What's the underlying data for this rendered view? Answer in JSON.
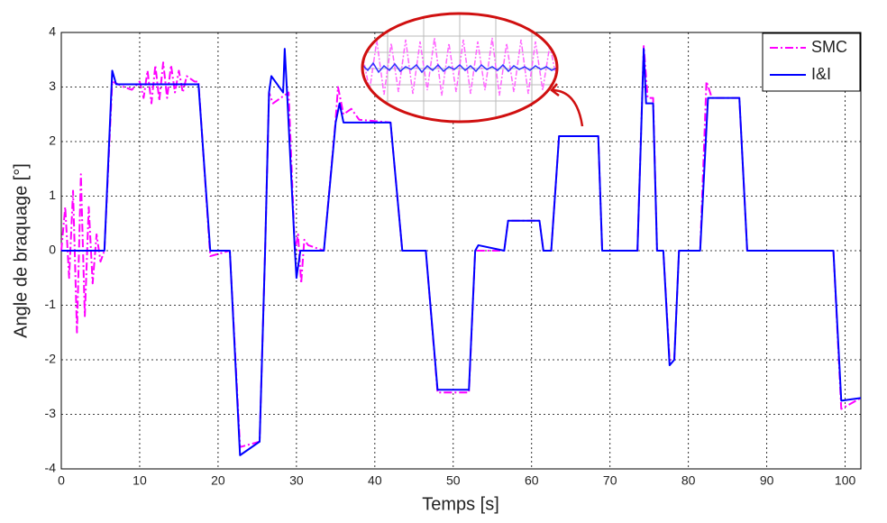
{
  "chart_data": {
    "type": "line",
    "xlabel": "Temps [s]",
    "ylabel": "Angle de braquage [°]",
    "xlim": [
      0,
      102
    ],
    "ylim": [
      -4,
      4
    ],
    "xticks": [
      0,
      10,
      20,
      30,
      40,
      50,
      60,
      70,
      80,
      90,
      100
    ],
    "yticks": [
      -4,
      -3,
      -2,
      -1,
      0,
      1,
      2,
      3,
      4
    ],
    "grid": true,
    "legend": "upper right",
    "series": [
      {
        "name": "SMC",
        "color": "#ff00ff",
        "dash": "dashdot",
        "x": [
          0,
          0.5,
          1,
          1.5,
          2,
          2.5,
          3,
          3.5,
          4,
          4.5,
          5,
          5.5,
          6.5,
          8,
          9,
          10,
          10.5,
          11,
          11.5,
          12,
          12.5,
          13,
          13.5,
          14,
          14.5,
          15,
          15.5,
          16,
          17,
          17.5,
          19,
          21.5,
          22.8,
          25.3,
          26,
          26.5,
          27,
          28,
          29,
          29.8,
          30.2,
          30.6,
          31,
          31.5,
          33.5,
          35,
          35.3,
          36,
          37,
          38,
          42,
          43.5,
          46.5,
          48,
          52,
          52.8,
          56.5,
          57,
          61,
          61.5,
          62.5,
          63.5,
          68.5,
          69,
          73.5,
          74.3,
          74.8,
          75.5,
          76,
          76.8,
          77.6,
          78.2,
          78.8,
          81.5,
          82.3,
          83,
          86.5,
          87.5,
          98.5,
          99.5,
          102
        ],
        "values": [
          0,
          0.8,
          -0.5,
          1.1,
          -1.5,
          1.4,
          -1.2,
          0.8,
          -0.6,
          0.3,
          -0.2,
          0,
          3.1,
          3.0,
          2.95,
          3.1,
          2.8,
          3.3,
          2.7,
          3.4,
          2.75,
          3.45,
          2.8,
          3.4,
          2.9,
          3.3,
          2.9,
          3.2,
          3.1,
          3.1,
          -0.1,
          0,
          -3.6,
          -3.5,
          0,
          2.9,
          2.7,
          2.8,
          2.9,
          0,
          0.3,
          -0.6,
          0.2,
          0.1,
          0,
          2.4,
          3.0,
          2.5,
          2.6,
          2.4,
          2.35,
          0,
          0,
          -2.6,
          -2.6,
          0,
          0,
          0.55,
          0.55,
          0,
          0,
          2.1,
          2.1,
          0,
          0,
          3.75,
          2.8,
          2.8,
          0,
          0,
          -2.0,
          -2,
          0,
          0,
          3.1,
          2.8,
          2.8,
          0,
          0,
          -2.9,
          -2.7
        ]
      },
      {
        "name": "I&I",
        "color": "#0000ff",
        "dash": "solid",
        "x": [
          0,
          5.5,
          6.5,
          7,
          17.5,
          19,
          21.5,
          22.8,
          25.3,
          26,
          26.5,
          26.8,
          28.3,
          28.5,
          28.8,
          29.8,
          30,
          30.5,
          33.5,
          35,
          35.5,
          36,
          42,
          43.5,
          46.5,
          48,
          52,
          52.8,
          53.2,
          56.5,
          57,
          61,
          61.5,
          62.5,
          63.5,
          68.5,
          69,
          73.5,
          74.3,
          74.6,
          75.5,
          76,
          76.8,
          77.6,
          78.2,
          78.8,
          81.5,
          82.5,
          86.5,
          87.5,
          98.5,
          99.5,
          102
        ],
        "values": [
          0,
          0,
          3.3,
          3.05,
          3.05,
          0,
          0,
          -3.75,
          -3.5,
          0,
          2.9,
          3.2,
          2.9,
          3.7,
          2.9,
          0,
          -0.5,
          0,
          0,
          2.35,
          2.7,
          2.35,
          2.35,
          0,
          0,
          -2.55,
          -2.55,
          0,
          0.1,
          0,
          0.55,
          0.55,
          0,
          0,
          2.1,
          2.1,
          0,
          0,
          3.7,
          2.7,
          2.7,
          0,
          0,
          -2.1,
          -2,
          0,
          0,
          2.8,
          2.8,
          0,
          0,
          -2.75,
          -2.7
        ]
      }
    ]
  }
}
